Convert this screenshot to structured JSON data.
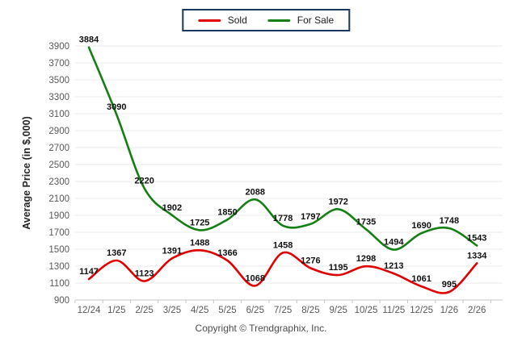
{
  "legend": {
    "items": [
      {
        "label": "Sold",
        "color": "#e00000"
      },
      {
        "label": "For Sale",
        "color": "#148014"
      }
    ]
  },
  "footer": {
    "copyright": "Copyright © Trendgraphix, Inc."
  },
  "colors": {
    "grid": "#e8e8e8",
    "axis": "#c6c6c6",
    "tick_text": "#595959",
    "data_label_text": "#111111",
    "axis_title_text": "#262626",
    "legend_border": "#17375d"
  },
  "chart_data": {
    "type": "line",
    "smooth": true,
    "grid": true,
    "legend_position": "top-center",
    "title": "",
    "xlabel": "",
    "ylabel": "Average Price (in $,000)",
    "ylim": [
      900,
      3900
    ],
    "ytick_step": 200,
    "categories": [
      "12/24",
      "1/25",
      "2/25",
      "3/25",
      "4/25",
      "5/25",
      "6/25",
      "7/25",
      "8/25",
      "9/25",
      "10/25",
      "11/25",
      "12/25",
      "1/26",
      "2/26"
    ],
    "series": [
      {
        "name": "For Sale",
        "color": "#148014",
        "values": [
          3884,
          3090,
          2220,
          1902,
          1725,
          1850,
          2088,
          1778,
          1797,
          1972,
          1735,
          1494,
          1690,
          1748,
          1543
        ]
      },
      {
        "name": "Sold",
        "color": "#e00000",
        "values": [
          1147,
          1367,
          1123,
          1391,
          1488,
          1366,
          1068,
          1458,
          1276,
          1195,
          1298,
          1213,
          1061,
          995,
          1334
        ]
      }
    ]
  }
}
